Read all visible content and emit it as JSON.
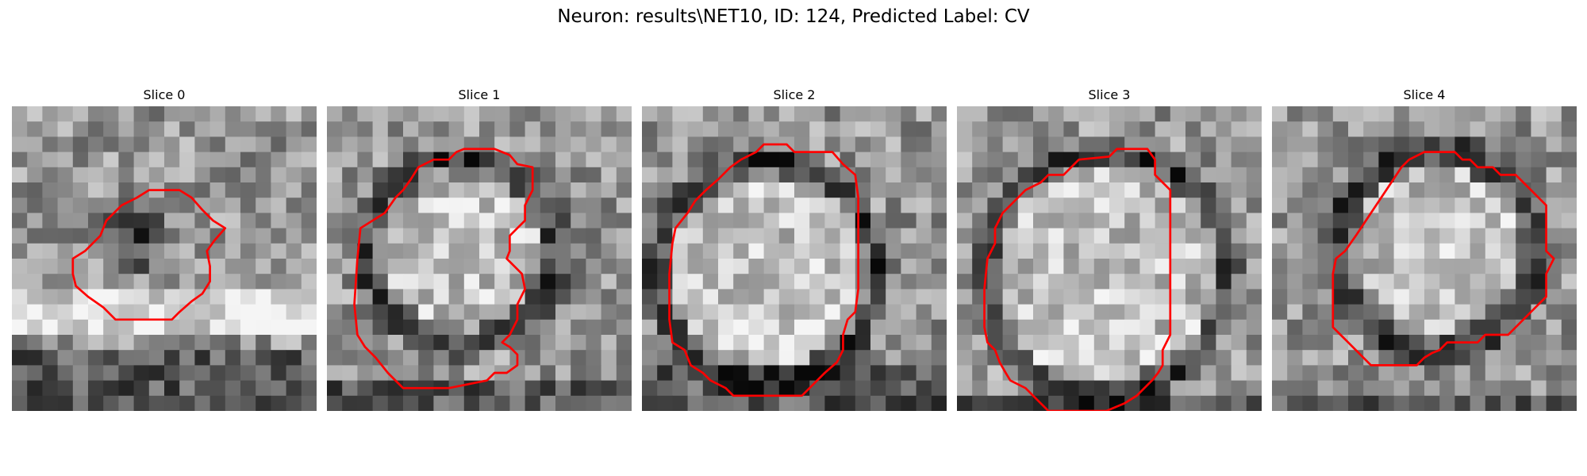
{
  "figure": {
    "title": "Neuron: results\\NET10, ID: 124, Predicted Label: CV",
    "contour_color": "#ff0000"
  },
  "slices": [
    {
      "title": "Slice 0",
      "contour": [
        [
          4.8,
          9.5
        ],
        [
          5.8,
          8.5
        ],
        [
          6.2,
          7.5
        ],
        [
          7.2,
          6.5
        ],
        [
          8.2,
          6.0
        ],
        [
          9.0,
          5.5
        ],
        [
          11.0,
          5.5
        ],
        [
          11.8,
          6.0
        ],
        [
          12.5,
          6.8
        ],
        [
          13.2,
          7.5
        ],
        [
          14.0,
          8.0
        ],
        [
          13.3,
          8.8
        ],
        [
          12.8,
          9.5
        ],
        [
          13.0,
          10.5
        ],
        [
          13.0,
          11.5
        ],
        [
          12.5,
          12.3
        ],
        [
          11.8,
          12.8
        ],
        [
          11.0,
          13.5
        ],
        [
          10.5,
          14.0
        ],
        [
          8.0,
          14.0
        ],
        [
          6.8,
          14.0
        ],
        [
          6.0,
          13.2
        ],
        [
          5.0,
          12.5
        ],
        [
          4.2,
          11.8
        ],
        [
          4.0,
          11.0
        ],
        [
          4.0,
          10.0
        ]
      ]
    },
    {
      "title": "Slice 1",
      "contour": [
        [
          3.8,
          7.0
        ],
        [
          4.5,
          6.0
        ],
        [
          5.0,
          5.5
        ],
        [
          5.5,
          4.8
        ],
        [
          6.0,
          4.0
        ],
        [
          7.0,
          3.5
        ],
        [
          8.0,
          3.5
        ],
        [
          8.5,
          3.0
        ],
        [
          9.0,
          2.8
        ],
        [
          11.0,
          2.8
        ],
        [
          12.0,
          3.2
        ],
        [
          12.5,
          3.8
        ],
        [
          13.5,
          4.0
        ],
        [
          13.5,
          5.5
        ],
        [
          13.0,
          6.5
        ],
        [
          13.0,
          7.5
        ],
        [
          12.5,
          8.0
        ],
        [
          12.0,
          8.5
        ],
        [
          12.0,
          9.5
        ],
        [
          11.8,
          10.0
        ],
        [
          12.3,
          10.5
        ],
        [
          12.8,
          11.0
        ],
        [
          13.0,
          12.0
        ],
        [
          12.5,
          13.0
        ],
        [
          12.5,
          14.0
        ],
        [
          12.0,
          15.0
        ],
        [
          11.5,
          15.5
        ],
        [
          12.0,
          15.8
        ],
        [
          12.5,
          16.3
        ],
        [
          12.5,
          17.0
        ],
        [
          11.8,
          17.5
        ],
        [
          11.0,
          17.5
        ],
        [
          10.5,
          18.0
        ],
        [
          8.0,
          18.5
        ],
        [
          5.0,
          18.5
        ],
        [
          4.0,
          17.5
        ],
        [
          3.2,
          16.5
        ],
        [
          2.5,
          15.8
        ],
        [
          2.0,
          15.0
        ],
        [
          1.8,
          13.0
        ],
        [
          2.0,
          10.0
        ],
        [
          2.2,
          8.0
        ]
      ]
    },
    {
      "title": "Slice 2",
      "contour": [
        [
          2.2,
          8.0
        ],
        [
          3.0,
          7.0
        ],
        [
          3.5,
          6.2
        ],
        [
          4.2,
          5.5
        ],
        [
          5.0,
          4.8
        ],
        [
          5.8,
          4.0
        ],
        [
          6.5,
          3.5
        ],
        [
          7.5,
          3.0
        ],
        [
          8.0,
          2.5
        ],
        [
          9.5,
          2.5
        ],
        [
          10.0,
          3.0
        ],
        [
          12.5,
          3.0
        ],
        [
          13.2,
          3.8
        ],
        [
          14.0,
          4.5
        ],
        [
          14.2,
          6.0
        ],
        [
          14.2,
          9.0
        ],
        [
          14.2,
          12.0
        ],
        [
          14.0,
          13.5
        ],
        [
          13.5,
          14.0
        ],
        [
          13.2,
          15.0
        ],
        [
          13.2,
          16.0
        ],
        [
          12.8,
          16.8
        ],
        [
          12.0,
          17.5
        ],
        [
          11.5,
          18.0
        ],
        [
          11.0,
          18.5
        ],
        [
          10.5,
          19.0
        ],
        [
          6.0,
          19.0
        ],
        [
          5.5,
          18.5
        ],
        [
          4.5,
          18.0
        ],
        [
          4.0,
          17.5
        ],
        [
          3.2,
          17.0
        ],
        [
          2.8,
          16.0
        ],
        [
          2.0,
          15.5
        ],
        [
          1.8,
          14.0
        ],
        [
          1.8,
          11.0
        ],
        [
          2.0,
          9.0
        ]
      ]
    },
    {
      "title": "Slice 3",
      "contour": [
        [
          2.5,
          8.0
        ],
        [
          3.0,
          7.0
        ],
        [
          3.8,
          6.2
        ],
        [
          4.5,
          5.5
        ],
        [
          5.5,
          5.0
        ],
        [
          6.0,
          4.5
        ],
        [
          7.0,
          4.5
        ],
        [
          7.5,
          4.0
        ],
        [
          8.0,
          3.5
        ],
        [
          10.0,
          3.3
        ],
        [
          10.5,
          2.8
        ],
        [
          12.5,
          2.8
        ],
        [
          13.0,
          3.5
        ],
        [
          13.0,
          4.5
        ],
        [
          13.5,
          5.0
        ],
        [
          14.0,
          5.5
        ],
        [
          14.0,
          7.0
        ],
        [
          14.0,
          10.0
        ],
        [
          14.0,
          13.0
        ],
        [
          14.0,
          15.0
        ],
        [
          13.5,
          16.0
        ],
        [
          13.5,
          17.0
        ],
        [
          13.2,
          17.5
        ],
        [
          12.8,
          18.0
        ],
        [
          12.3,
          18.5
        ],
        [
          11.8,
          19.0
        ],
        [
          11.0,
          19.5
        ],
        [
          9.8,
          20.0
        ],
        [
          6.0,
          20.0
        ],
        [
          5.5,
          19.5
        ],
        [
          5.0,
          19.0
        ],
        [
          4.5,
          18.5
        ],
        [
          3.5,
          18.0
        ],
        [
          3.2,
          17.5
        ],
        [
          2.8,
          16.8
        ],
        [
          2.5,
          16.0
        ],
        [
          2.0,
          15.5
        ],
        [
          1.8,
          14.5
        ],
        [
          1.8,
          12.0
        ],
        [
          2.0,
          10.0
        ],
        [
          2.5,
          9.0
        ]
      ]
    },
    {
      "title": "Slice 4",
      "contour": [
        [
          4.8,
          9.5
        ],
        [
          5.5,
          8.5
        ],
        [
          6.5,
          7.0
        ],
        [
          7.5,
          5.5
        ],
        [
          8.5,
          4.0
        ],
        [
          9.0,
          3.5
        ],
        [
          10.0,
          3.0
        ],
        [
          12.0,
          3.0
        ],
        [
          12.5,
          3.5
        ],
        [
          13.0,
          3.5
        ],
        [
          13.5,
          4.0
        ],
        [
          14.5,
          4.0
        ],
        [
          15.0,
          4.5
        ],
        [
          16.0,
          4.5
        ],
        [
          16.5,
          5.0
        ],
        [
          17.0,
          5.5
        ],
        [
          17.5,
          6.0
        ],
        [
          18.0,
          6.5
        ],
        [
          18.0,
          7.5
        ],
        [
          18.0,
          8.5
        ],
        [
          18.0,
          9.5
        ],
        [
          18.5,
          10.0
        ],
        [
          18.0,
          11.0
        ],
        [
          18.0,
          12.5
        ],
        [
          17.5,
          13.0
        ],
        [
          17.0,
          13.5
        ],
        [
          16.5,
          14.0
        ],
        [
          16.0,
          14.5
        ],
        [
          15.5,
          15.0
        ],
        [
          14.0,
          15.0
        ],
        [
          13.5,
          15.5
        ],
        [
          11.5,
          15.5
        ],
        [
          11.0,
          16.0
        ],
        [
          10.5,
          16.2
        ],
        [
          10.0,
          16.5
        ],
        [
          9.5,
          17.0
        ],
        [
          7.5,
          17.0
        ],
        [
          6.5,
          17.0
        ],
        [
          6.0,
          16.5
        ],
        [
          5.5,
          16.0
        ],
        [
          5.0,
          15.5
        ],
        [
          4.5,
          15.0
        ],
        [
          4.0,
          14.5
        ],
        [
          4.0,
          13.0
        ],
        [
          4.0,
          11.0
        ],
        [
          4.2,
          10.0
        ]
      ]
    }
  ]
}
